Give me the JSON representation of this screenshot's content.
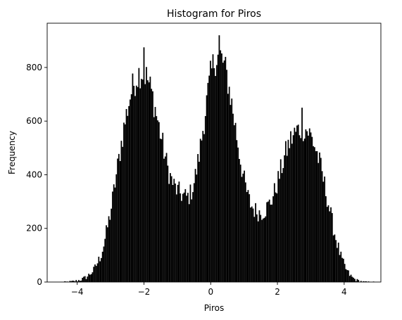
{
  "chart_data": {
    "type": "bar",
    "title": "Histogram for Piros",
    "xlabel": "Piros",
    "ylabel": "Frequency",
    "xlim": [
      -4.9,
      5.1
    ],
    "ylim": [
      0,
      965
    ],
    "xticks": [
      -4,
      -2,
      0,
      2,
      4
    ],
    "xtick_labels": [
      "−4",
      "−2",
      "0",
      "2",
      "4"
    ],
    "yticks": [
      0,
      200,
      400,
      600,
      800
    ],
    "ytick_labels": [
      "0",
      "200",
      "400",
      "600",
      "800"
    ],
    "bar_color": "#000000",
    "bin_range": [
      -4.5,
      4.9
    ],
    "bin_count": 250,
    "density_curve": {
      "description_units": "frequency per bin at x (data units)",
      "points": [
        [
          -4.5,
          0
        ],
        [
          -4.3,
          1
        ],
        [
          -4.1,
          3
        ],
        [
          -3.9,
          8
        ],
        [
          -3.7,
          20
        ],
        [
          -3.5,
          45
        ],
        [
          -3.3,
          95
        ],
        [
          -3.2,
          140
        ],
        [
          -3.1,
          200
        ],
        [
          -3.0,
          260
        ],
        [
          -2.9,
          340
        ],
        [
          -2.8,
          420
        ],
        [
          -2.7,
          500
        ],
        [
          -2.6,
          575
        ],
        [
          -2.5,
          640
        ],
        [
          -2.4,
          700
        ],
        [
          -2.3,
          740
        ],
        [
          -2.2,
          770
        ],
        [
          -2.1,
          785
        ],
        [
          -2.0,
          780
        ],
        [
          -1.9,
          760
        ],
        [
          -1.8,
          720
        ],
        [
          -1.7,
          670
        ],
        [
          -1.6,
          610
        ],
        [
          -1.5,
          550
        ],
        [
          -1.4,
          490
        ],
        [
          -1.3,
          430
        ],
        [
          -1.2,
          390
        ],
        [
          -1.1,
          360
        ],
        [
          -1.0,
          340
        ],
        [
          -0.9,
          330
        ],
        [
          -0.8,
          320
        ],
        [
          -0.7,
          315
        ],
        [
          -0.6,
          330
        ],
        [
          -0.5,
          370
        ],
        [
          -0.4,
          430
        ],
        [
          -0.3,
          510
        ],
        [
          -0.2,
          600
        ],
        [
          -0.1,
          690
        ],
        [
          0.0,
          770
        ],
        [
          0.1,
          820
        ],
        [
          0.2,
          845
        ],
        [
          0.3,
          840
        ],
        [
          0.4,
          810
        ],
        [
          0.5,
          760
        ],
        [
          0.6,
          690
        ],
        [
          0.7,
          610
        ],
        [
          0.8,
          530
        ],
        [
          0.9,
          450
        ],
        [
          1.0,
          380
        ],
        [
          1.1,
          325
        ],
        [
          1.2,
          290
        ],
        [
          1.3,
          270
        ],
        [
          1.4,
          262
        ],
        [
          1.5,
          258
        ],
        [
          1.6,
          265
        ],
        [
          1.7,
          280
        ],
        [
          1.8,
          300
        ],
        [
          1.9,
          330
        ],
        [
          2.0,
          370
        ],
        [
          2.1,
          415
        ],
        [
          2.2,
          460
        ],
        [
          2.3,
          500
        ],
        [
          2.4,
          530
        ],
        [
          2.5,
          550
        ],
        [
          2.6,
          565
        ],
        [
          2.7,
          575
        ],
        [
          2.8,
          575
        ],
        [
          2.9,
          565
        ],
        [
          3.0,
          545
        ],
        [
          3.1,
          515
        ],
        [
          3.2,
          475
        ],
        [
          3.3,
          425
        ],
        [
          3.4,
          370
        ],
        [
          3.5,
          310
        ],
        [
          3.6,
          250
        ],
        [
          3.7,
          190
        ],
        [
          3.8,
          140
        ],
        [
          3.9,
          95
        ],
        [
          4.0,
          62
        ],
        [
          4.1,
          38
        ],
        [
          4.2,
          22
        ],
        [
          4.3,
          12
        ],
        [
          4.4,
          6
        ],
        [
          4.5,
          3
        ],
        [
          4.6,
          1
        ],
        [
          4.9,
          0
        ]
      ]
    },
    "peaks": [
      {
        "x": -2.0,
        "y": 875
      },
      {
        "x": 0.25,
        "y": 920
      },
      {
        "x": 2.75,
        "y": 650
      }
    ]
  }
}
